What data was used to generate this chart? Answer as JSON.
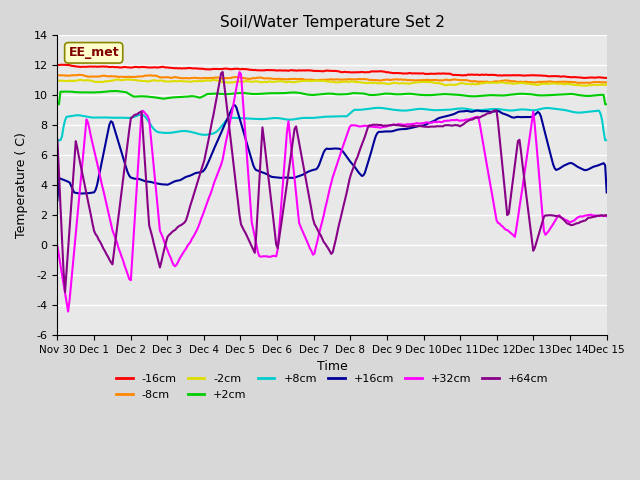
{
  "title": "Soil/Water Temperature Set 2",
  "xlabel": "Time",
  "ylabel": "Temperature ( C)",
  "ylim": [
    -6,
    14
  ],
  "annotation": "EE_met",
  "series": {
    "-16cm": {
      "color": "#ff0000",
      "lw": 1.5
    },
    "-8cm": {
      "color": "#ff8800",
      "lw": 1.5
    },
    "-2cm": {
      "color": "#dddd00",
      "lw": 1.5
    },
    "+2cm": {
      "color": "#00cc00",
      "lw": 1.5
    },
    "+8cm": {
      "color": "#00cccc",
      "lw": 1.5
    },
    "+16cm": {
      "color": "#000099",
      "lw": 1.5
    },
    "+32cm": {
      "color": "#ff00ff",
      "lw": 1.5
    },
    "+64cm": {
      "color": "#880088",
      "lw": 1.5
    }
  },
  "xtick_positions": [
    0,
    1,
    2,
    3,
    4,
    5,
    6,
    7,
    8,
    9,
    10,
    11,
    12,
    13,
    14,
    15
  ],
  "xtick_labels": [
    "Nov 30",
    "Dec 1",
    "Dec 2",
    "Dec 3",
    "Dec 4",
    "Dec 5",
    "Dec 6",
    "Dec 7",
    "Dec 8",
    "Dec 9",
    "Dec 10",
    "Dec 11",
    "Dec 12",
    "Dec 13",
    "Dec 14",
    "Dec 15"
  ],
  "ytick_vals": [
    -6,
    -4,
    -2,
    0,
    2,
    4,
    6,
    8,
    10,
    12,
    14
  ]
}
